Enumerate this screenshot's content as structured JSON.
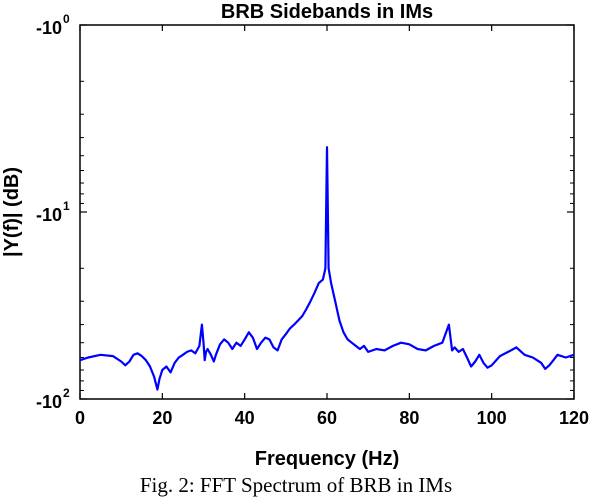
{
  "chart_data": {
    "type": "line",
    "title": "BRB Sidebands in IMs",
    "xlabel": "Frequency (Hz)",
    "ylabel": "|Y(f)| (dB)",
    "xlim": [
      0,
      120
    ],
    "ylim": [
      -100,
      -1
    ],
    "yscale": "log (labelled as negative powers of ten)",
    "grid": false,
    "x_ticks": [
      "0",
      "20",
      "40",
      "60",
      "80",
      "100",
      "120"
    ],
    "y_ticks": [
      {
        "base": "-10",
        "exp": "0"
      },
      {
        "base": "-10",
        "exp": "1"
      },
      {
        "base": "-10",
        "exp": "2"
      }
    ],
    "series": [
      {
        "color": "#0000ff",
        "x": [
          0,
          2,
          5,
          8,
          10,
          11,
          12,
          13,
          14,
          15,
          16,
          17,
          18,
          18.8,
          19.3,
          20,
          21,
          22,
          23,
          24,
          25,
          26,
          27,
          28,
          29,
          29.6,
          30,
          30.3,
          30.6,
          31,
          31.8,
          32.5,
          33,
          34,
          35,
          36,
          37,
          38,
          39,
          40,
          41,
          42,
          43,
          44,
          45,
          46,
          47,
          48,
          49,
          50,
          51,
          52,
          53,
          54,
          55,
          56,
          57,
          58,
          59,
          59.6,
          60,
          60.4,
          61,
          62,
          63,
          64,
          65,
          66,
          67,
          68,
          69,
          70,
          72,
          74,
          76,
          78,
          80,
          82,
          84,
          86,
          88,
          89.6,
          90,
          90.4,
          91,
          92,
          93,
          94,
          95,
          96,
          97,
          98,
          99,
          100,
          102,
          104,
          106,
          108,
          110,
          111,
          112,
          113,
          114,
          115,
          116,
          118,
          120
        ],
        "y": [
          -62,
          -60,
          -58,
          -59,
          -63,
          -66,
          -63,
          -58,
          -57,
          -59,
          -62,
          -67,
          -76,
          -89,
          -78,
          -70,
          -67,
          -72,
          -64,
          -60,
          -58,
          -56,
          -55,
          -57,
          -52,
          -40,
          -50,
          -62,
          -56,
          -54,
          -58,
          -63,
          -58,
          -51,
          -48,
          -50,
          -54,
          -50,
          -52,
          -48,
          -44,
          -47,
          -54,
          -50,
          -47,
          -48,
          -53,
          -55,
          -48,
          -45,
          -42,
          -40,
          -38,
          -36,
          -33,
          -30,
          -27,
          -24,
          -23,
          -20,
          -4.5,
          -20,
          -24,
          -30,
          -38,
          -44,
          -48,
          -50,
          -52,
          -54,
          -52,
          -56,
          -54,
          -55,
          -52,
          -50,
          -51,
          -54,
          -55,
          -52,
          -50,
          -40,
          -47,
          -55,
          -53,
          -56,
          -54,
          -60,
          -67,
          -63,
          -58,
          -64,
          -68,
          -66,
          -59,
          -56,
          -53,
          -58,
          -60,
          -62,
          -64,
          -69,
          -66,
          -62,
          -58,
          -60,
          -58
        ]
      }
    ]
  },
  "caption": "Fig. 2: FFT Spectrum of BRB in IMs"
}
